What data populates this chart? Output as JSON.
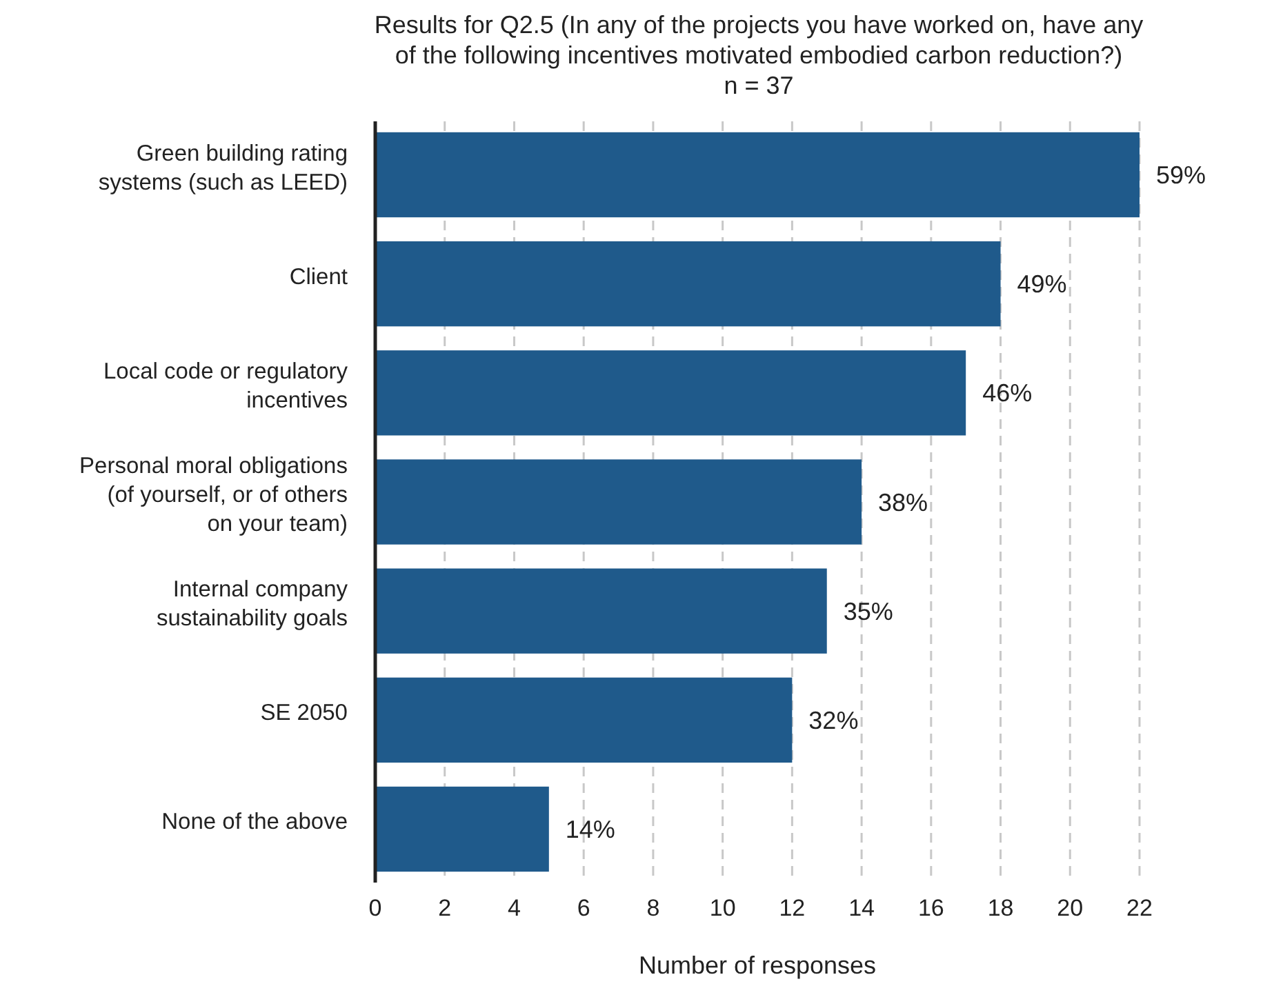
{
  "chart_data": {
    "type": "bar",
    "orientation": "horizontal",
    "title": "Results for Q2.5 (In any of the projects you have worked on, have any\nof the following incentives motivated embodied carbon reduction?)\nn = 37",
    "xlabel": "Number of responses",
    "categories": [
      "Green building rating\nsystems (such as LEED)",
      "Client",
      "Local code or regulatory\nincentives",
      "Personal moral obligations\n(of yourself, or of others\non your team)",
      "Internal company\nsustainability goals",
      "SE 2050",
      "None of the above"
    ],
    "values": [
      22,
      18,
      17,
      14,
      13,
      12,
      5
    ],
    "annotations": [
      {
        "text": "59%",
        "x": 22,
        "y": "Green building rating\nsystems (such as LEED)"
      },
      {
        "text": "49%",
        "x": 18,
        "y": "Client"
      },
      {
        "text": "46%",
        "x": 17,
        "y": "Local code or regulatory\nincentives"
      },
      {
        "text": "38%",
        "x": 14,
        "y": "Personal moral obligations\n(of yourself, or of others\non your team)"
      },
      {
        "text": "35%",
        "x": 13,
        "y": "Internal company\nsustainability goals"
      },
      {
        "text": "32%",
        "x": 12,
        "y": "SE 2050"
      },
      {
        "text": "14%",
        "x": 5,
        "y": "None of the above"
      }
    ],
    "color": "#1f5a8b",
    "xlim": [
      0,
      22
    ],
    "xticks": [
      0,
      2,
      4,
      6,
      8,
      10,
      12,
      14,
      16,
      18,
      20,
      22
    ],
    "grid": "x"
  }
}
